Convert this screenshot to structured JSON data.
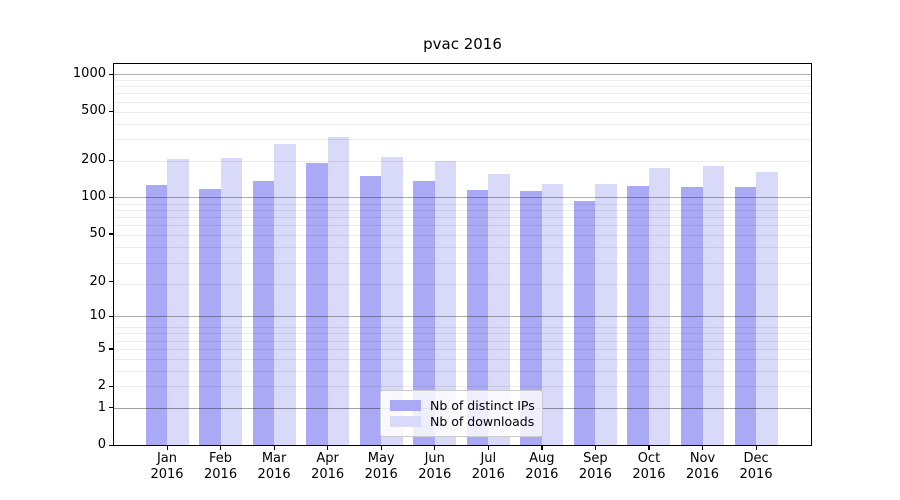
{
  "chart_data": {
    "type": "bar",
    "title": "pvac 2016",
    "categories": [
      "Jan",
      "Feb",
      "Mar",
      "Apr",
      "May",
      "Jun",
      "Jul",
      "Aug",
      "Sep",
      "Oct",
      "Nov",
      "Dec"
    ],
    "x_year_label": "2016",
    "series": [
      {
        "name": "Nb of distinct IPs",
        "color": "#a9a9f6",
        "values": [
          127,
          118,
          135,
          192,
          150,
          137,
          115,
          112,
          94,
          124,
          122,
          122
        ]
      },
      {
        "name": "Nb of downloads",
        "color": "#d9d9f9",
        "values": [
          207,
          208,
          271,
          309,
          215,
          196,
          155,
          128,
          128,
          174,
          181,
          162
        ]
      }
    ],
    "xlabel": "",
    "ylabel": "",
    "yscale": "log1p",
    "yticks": [
      0,
      1,
      2,
      5,
      10,
      20,
      50,
      100,
      200,
      500,
      1000
    ],
    "ylim": [
      0,
      1210
    ],
    "grid": {
      "major_gridlines_at": [
        1,
        10,
        100,
        1000
      ],
      "minor_gridlines": "log-ladder",
      "drawn_over_bars": true
    },
    "legend": {
      "position": "lower-center",
      "entries": [
        "Nb of distinct IPs",
        "Nb of downloads"
      ]
    }
  }
}
